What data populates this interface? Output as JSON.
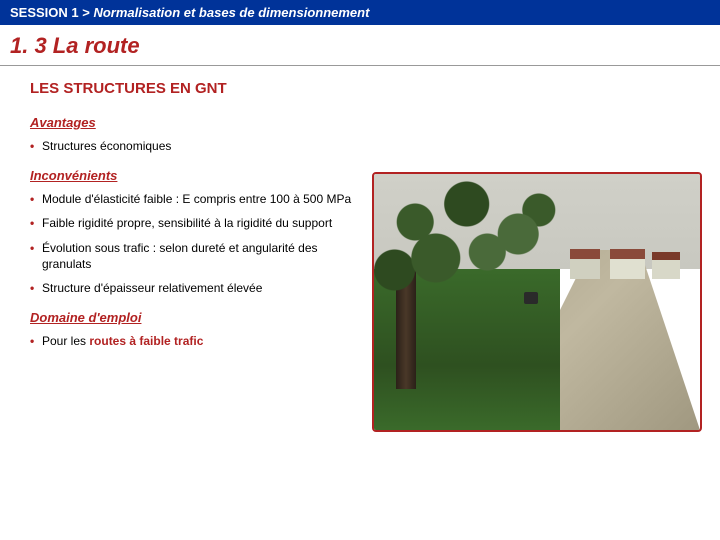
{
  "header": {
    "session": "SESSION 1 >",
    "subtitle": "Normalisation et bases de dimensionnement"
  },
  "title": "1. 3 La route",
  "section_title": "LES STRUCTURES EN GNT",
  "advantages": {
    "heading": "Avantages",
    "items": [
      "Structures économiques"
    ]
  },
  "drawbacks": {
    "heading": "Inconvénients",
    "items": [
      "Module d'élasticité faible :\nE compris entre 100 à 500 MPa",
      "Faible rigidité propre, sensibilité\nà la rigidité du support",
      "Évolution sous trafic : selon dureté\net angularité des granulats",
      "Structure d'épaisseur relativement élevée"
    ]
  },
  "domain": {
    "heading": "Domaine d'emploi",
    "prefix": "Pour les ",
    "highlight": "routes à faible trafic"
  },
  "colors": {
    "header_bg": "#003399",
    "accent": "#b22222",
    "text": "#000000"
  }
}
